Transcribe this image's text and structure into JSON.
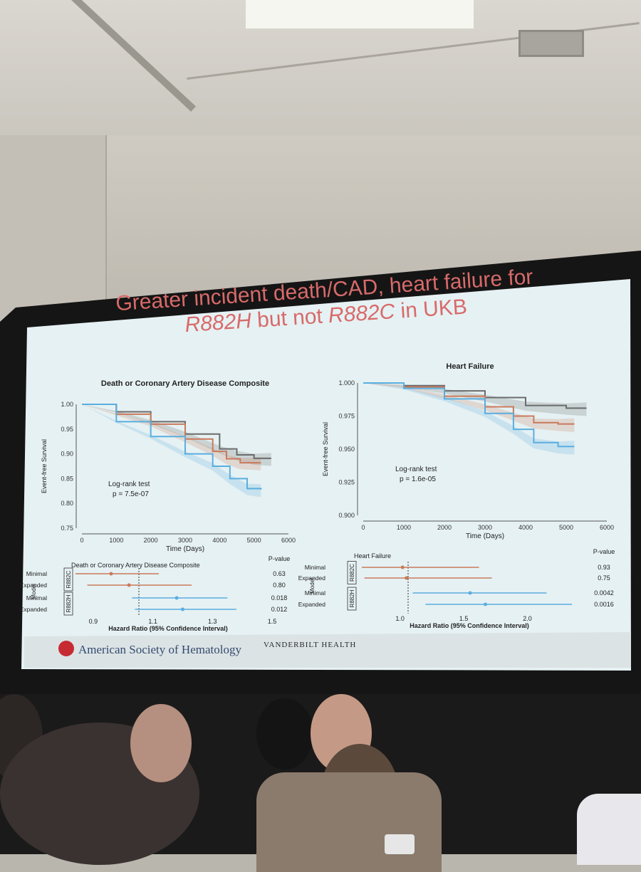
{
  "slide": {
    "title_line1": "Greater incident death/CAD, heart failure for",
    "title_r882h": "R882H",
    "title_mid": " but not ",
    "title_r882c": "R882C",
    "title_end": " in UKB",
    "footer_left": "American Society of Hematology",
    "footer_right": "VANDERBILT HEALTH"
  },
  "colors": {
    "orange": "#c97a5a",
    "blue": "#5aaee0",
    "gray": "#6b6b6b",
    "title": "#d86a6a"
  },
  "chart_data": [
    {
      "type": "line",
      "title": "Death or Coronary Artery Disease Composite",
      "xlabel": "Time (Days)",
      "ylabel": "Event-free Survival",
      "xlim": [
        0,
        6000
      ],
      "ylim": [
        0.75,
        1.0
      ],
      "xticks": [
        "0",
        "1000",
        "2000",
        "3000",
        "4000",
        "5000",
        "6000"
      ],
      "yticks": [
        "0.75",
        "0.80",
        "0.85",
        "0.90",
        "0.95",
        "1.00"
      ],
      "annotation": [
        "Log-rank test",
        "p = 7.5e-07"
      ],
      "series": [
        {
          "color": "gray",
          "x": [
            0,
            1000,
            2000,
            3000,
            4000,
            4500,
            5000,
            5500
          ],
          "y": [
            1.0,
            0.985,
            0.965,
            0.94,
            0.91,
            0.898,
            0.891,
            0.891
          ]
        },
        {
          "color": "orange",
          "x": [
            0,
            1000,
            2000,
            3000,
            3800,
            4200,
            4600,
            5200
          ],
          "y": [
            1.0,
            0.98,
            0.96,
            0.93,
            0.905,
            0.89,
            0.882,
            0.882
          ]
        },
        {
          "color": "blue",
          "x": [
            0,
            1000,
            2000,
            3000,
            3800,
            4300,
            4800,
            5200
          ],
          "y": [
            1.0,
            0.965,
            0.935,
            0.9,
            0.875,
            0.85,
            0.83,
            0.828
          ]
        }
      ]
    },
    {
      "type": "line",
      "title": "Heart Failure",
      "xlabel": "Time (Days)",
      "ylabel": "Event-free Survival",
      "xlim": [
        0,
        6000
      ],
      "ylim": [
        0.9,
        1.0
      ],
      "xticks": [
        "0",
        "1000",
        "2000",
        "3000",
        "4000",
        "5000",
        "6000"
      ],
      "yticks": [
        "0.900",
        "0.925",
        "0.950",
        "0.975",
        "1.000"
      ],
      "annotation": [
        "Log-rank test",
        "p = 1.6e-05"
      ],
      "series": [
        {
          "color": "gray",
          "x": [
            0,
            1000,
            2000,
            3000,
            4000,
            5000,
            5500
          ],
          "y": [
            1.0,
            0.998,
            0.994,
            0.989,
            0.983,
            0.981,
            0.981
          ]
        },
        {
          "color": "orange",
          "x": [
            0,
            1000,
            2000,
            3000,
            3700,
            4200,
            4800,
            5200
          ],
          "y": [
            1.0,
            0.997,
            0.99,
            0.982,
            0.975,
            0.97,
            0.969,
            0.969
          ]
        },
        {
          "color": "blue",
          "x": [
            0,
            1000,
            2000,
            3000,
            3700,
            4200,
            4800,
            5200
          ],
          "y": [
            1.0,
            0.996,
            0.988,
            0.977,
            0.965,
            0.955,
            0.952,
            0.952
          ]
        }
      ]
    },
    {
      "type": "scatter",
      "title": "Death or Coronary Artery Disease Composite",
      "xlabel": "Hazard Ratio (95% Confidence Interval)",
      "ylabel": "Model",
      "xticks": [
        "0.9",
        "1.1",
        "1.3",
        "1.5"
      ],
      "xlim": [
        0.85,
        1.5
      ],
      "pvalue_header": "P-value",
      "groups": [
        "R882C",
        "R882H"
      ],
      "rows": [
        {
          "label": "Minimal",
          "group": "R882C",
          "color": "orange",
          "hr": 0.96,
          "lo": 0.84,
          "hi": 1.12,
          "p": "0.63"
        },
        {
          "label": "Expanded",
          "group": "R882C",
          "color": "orange",
          "hr": 1.02,
          "lo": 0.88,
          "hi": 1.23,
          "p": "0.80"
        },
        {
          "label": "Minimal",
          "group": "R882H",
          "color": "blue",
          "hr": 1.18,
          "lo": 1.03,
          "hi": 1.35,
          "p": "0.018"
        },
        {
          "label": "Expanded",
          "group": "R882H",
          "color": "blue",
          "hr": 1.2,
          "lo": 1.04,
          "hi": 1.38,
          "p": "0.012"
        }
      ]
    },
    {
      "type": "scatter",
      "title": "Heart Failure",
      "xlabel": "Hazard Ratio (95% Confidence Interval)",
      "ylabel": "Model",
      "xticks": [
        "1.0",
        "1.5",
        "2.0"
      ],
      "xlim": [
        0.7,
        2.5
      ],
      "pvalue_header": "P-value",
      "groups": [
        "R882C",
        "R882H"
      ],
      "rows": [
        {
          "label": "Minimal",
          "group": "R882C",
          "color": "orange",
          "hr": 1.02,
          "lo": 0.7,
          "hi": 1.62,
          "p": "0.93"
        },
        {
          "label": "Expanded",
          "group": "R882C",
          "color": "orange",
          "hr": 1.05,
          "lo": 0.72,
          "hi": 1.72,
          "p": "0.75"
        },
        {
          "label": "Minimal",
          "group": "R882H",
          "color": "blue",
          "hr": 1.55,
          "lo": 1.1,
          "hi": 2.15,
          "p": "0.0042"
        },
        {
          "label": "Expanded",
          "group": "R882H",
          "color": "blue",
          "hr": 1.67,
          "lo": 1.2,
          "hi": 2.35,
          "p": "0.0016"
        }
      ]
    }
  ]
}
